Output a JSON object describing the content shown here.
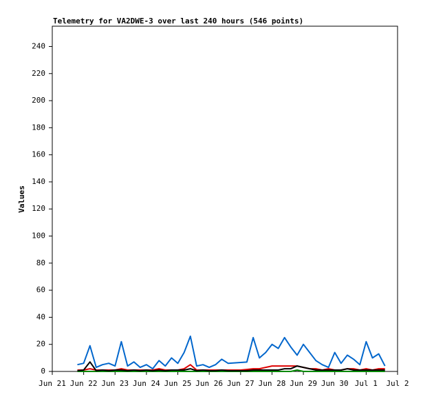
{
  "chart_data": {
    "type": "line",
    "title": "Telemetry for VA2DWE-3 over last 240 hours (546 points)",
    "y_label": "Values",
    "xlim": [
      21,
      32
    ],
    "xticks": [
      {
        "value": 21,
        "label": "Jun 21"
      },
      {
        "value": 22,
        "label": "Jun 22"
      },
      {
        "value": 23,
        "label": "Jun 23"
      },
      {
        "value": 24,
        "label": "Jun 24"
      },
      {
        "value": 25,
        "label": "Jun 25"
      },
      {
        "value": 26,
        "label": "Jun 26"
      },
      {
        "value": 27,
        "label": "Jun 27"
      },
      {
        "value": 28,
        "label": "Jun 28"
      },
      {
        "value": 29,
        "label": "Jun 29"
      },
      {
        "value": 30,
        "label": "Jun 30"
      },
      {
        "value": 31,
        "label": "Jul 1"
      },
      {
        "value": 32,
        "label": "Jul 2"
      }
    ],
    "ylim": [
      0,
      255
    ],
    "yticks": [
      0,
      20,
      40,
      60,
      80,
      100,
      120,
      140,
      160,
      180,
      200,
      220,
      240
    ],
    "x": [
      21.8,
      22,
      22.2,
      22.4,
      22.6,
      22.8,
      23,
      23.2,
      23.4,
      23.6,
      23.8,
      24,
      24.2,
      24.4,
      24.6,
      24.8,
      25,
      25.2,
      25.4,
      25.6,
      25.8,
      26,
      26.2,
      26.4,
      26.6,
      26.8,
      27,
      27.2,
      27.4,
      27.6,
      27.8,
      28,
      28.2,
      28.4,
      28.6,
      28.8,
      29,
      29.2,
      29.4,
      29.6,
      29.8,
      30,
      30.2,
      30.4,
      30.6,
      30.8,
      31,
      31.2,
      31.4,
      31.6
    ],
    "series": [
      {
        "color": "#0066cc",
        "values": [
          5,
          6,
          19,
          3,
          5,
          6,
          4,
          22,
          4,
          7,
          3,
          5,
          2,
          8,
          4,
          10,
          6,
          14,
          26,
          4,
          5,
          3,
          5,
          9,
          6,
          6.3,
          6.6,
          6.9,
          25,
          10,
          14,
          20,
          17,
          25,
          18,
          12,
          20,
          14,
          8,
          5,
          3,
          14,
          6,
          12,
          9,
          5,
          22,
          10,
          13,
          4
        ]
      },
      {
        "color": "#dd0000",
        "values": [
          1,
          1,
          2,
          1,
          1,
          1,
          1,
          2,
          1,
          1,
          1,
          1,
          1,
          2,
          1,
          1,
          1,
          2,
          5,
          1,
          1,
          1,
          1,
          1,
          1,
          1,
          1,
          1.5,
          2,
          2,
          3,
          4,
          4,
          4,
          4,
          4,
          3,
          2,
          2,
          1,
          2,
          1,
          1,
          2,
          2,
          1,
          2,
          1,
          2,
          2
        ]
      },
      {
        "color": "#008800",
        "values": [
          0,
          0,
          0,
          0,
          0,
          0,
          0,
          0,
          0,
          0,
          0,
          0,
          0,
          0,
          0,
          0,
          0,
          0,
          0,
          0,
          0,
          0,
          0,
          0,
          0,
          0,
          0,
          0,
          0,
          0,
          0,
          0,
          0,
          0,
          0,
          1,
          0,
          0,
          0,
          0,
          0,
          0,
          0,
          0,
          0,
          0,
          0,
          0,
          0,
          0
        ]
      },
      {
        "color": "#000000",
        "values": [
          0.5,
          1,
          7,
          0.5,
          1,
          0.5,
          1,
          1,
          0.5,
          1,
          0.5,
          1,
          0.5,
          1,
          0.5,
          1,
          1,
          1,
          2,
          0.5,
          1,
          0.5,
          0.5,
          1,
          0.5,
          0.5,
          0.5,
          0.5,
          1,
          1,
          1,
          1,
          1,
          2,
          2,
          4,
          3,
          2,
          1,
          1,
          1,
          1,
          1,
          2,
          1,
          1,
          1,
          1,
          1,
          1
        ]
      }
    ]
  }
}
